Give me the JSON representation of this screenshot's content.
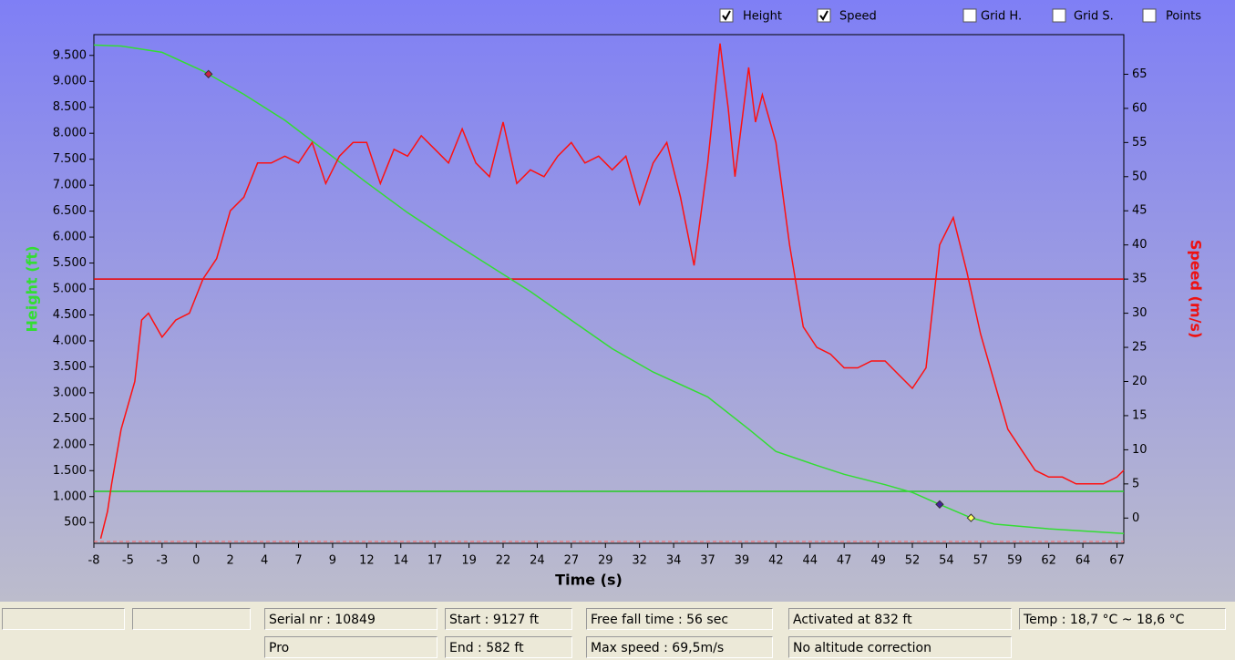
{
  "checkboxes": [
    {
      "label": "Height",
      "checked": true
    },
    {
      "label": "Speed",
      "checked": true
    },
    {
      "label": "Grid H.",
      "checked": false
    },
    {
      "label": "Grid S.",
      "checked": false
    },
    {
      "label": "Points",
      "checked": false
    }
  ],
  "chart_data": {
    "type": "line",
    "xlabel": "Time (s)",
    "ylabel": "Height (ft)",
    "y2label": "Speed (m/s)",
    "xlim": [
      -8,
      67.5
    ],
    "xticks": [
      -8,
      {
        "value": -5.5,
        "label": "-5"
      },
      -3,
      {
        "value": -0.5,
        "label": "0"
      },
      2,
      {
        "value": 4.5,
        "label": "4"
      },
      7,
      {
        "value": 9.5,
        "label": "9"
      },
      12,
      {
        "value": 14.5,
        "label": "14"
      },
      17,
      {
        "value": 19.5,
        "label": "19"
      },
      22,
      {
        "value": 24.5,
        "label": "24"
      },
      27,
      {
        "value": 29.5,
        "label": "29"
      },
      32,
      {
        "value": 34.5,
        "label": "34"
      },
      37,
      {
        "value": 39.5,
        "label": "39"
      },
      42,
      {
        "value": 44.5,
        "label": "44"
      },
      47,
      {
        "value": 49.5,
        "label": "49"
      },
      52,
      {
        "value": 54.5,
        "label": "54"
      },
      57,
      {
        "value": 59.5,
        "label": "59"
      },
      62,
      {
        "value": 64.5,
        "label": "64"
      },
      67
    ],
    "ylim": [
      100,
      9900
    ],
    "yticks": [
      {
        "value": 500,
        "label": "500"
      },
      {
        "value": 1000,
        "label": "1.000"
      },
      {
        "value": 1500,
        "label": "1.500"
      },
      {
        "value": 2000,
        "label": "2.000"
      },
      {
        "value": 2500,
        "label": "2.500"
      },
      {
        "value": 3000,
        "label": "3.000"
      },
      {
        "value": 3500,
        "label": "3.500"
      },
      {
        "value": 4000,
        "label": "4.000"
      },
      {
        "value": 4500,
        "label": "4.500"
      },
      {
        "value": 5000,
        "label": "5.000"
      },
      {
        "value": 5500,
        "label": "5.500"
      },
      {
        "value": 6000,
        "label": "6.000"
      },
      {
        "value": 6500,
        "label": "6.500"
      },
      {
        "value": 7000,
        "label": "7.000"
      },
      {
        "value": 7500,
        "label": "7.500"
      },
      {
        "value": 8000,
        "label": "8.000"
      },
      {
        "value": 8500,
        "label": "8.500"
      },
      {
        "value": 9000,
        "label": "9.000"
      },
      {
        "value": 9500,
        "label": "9.500"
      }
    ],
    "y2lim": [
      -3.7,
      70.8
    ],
    "y2ticks": [
      0,
      5,
      10,
      15,
      20,
      25,
      30,
      35,
      40,
      45,
      50,
      55,
      60,
      65
    ],
    "series": [
      {
        "name": "Height",
        "color": "#33dd33",
        "x": [
          -8,
          -6,
          -3,
          0,
          3,
          6,
          9,
          12,
          15,
          18,
          21,
          24,
          27,
          30,
          33,
          37,
          40,
          42,
          45,
          47,
          50,
          52,
          54,
          56.3,
          58,
          62,
          67.5
        ],
        "values": [
          9700,
          9680,
          9560,
          9200,
          8750,
          8250,
          7650,
          7050,
          6470,
          5950,
          5450,
          4950,
          4400,
          3850,
          3400,
          2920,
          2300,
          1870,
          1600,
          1430,
          1230,
          1080,
          850,
          590,
          470,
          380,
          290
        ]
      },
      {
        "name": "Speed",
        "color": "#ff1010",
        "axis": "y2",
        "x": [
          -7.5,
          -7,
          -6.7,
          -6,
          -5,
          -4.5,
          -4,
          -3,
          -2,
          -1,
          0,
          1,
          2,
          3,
          4,
          5,
          6,
          7,
          8,
          9,
          10,
          11,
          12,
          13,
          14,
          15,
          16,
          17,
          18,
          19,
          20,
          21,
          22,
          23,
          24,
          25,
          26,
          27,
          28,
          29,
          30,
          31,
          32,
          33,
          34,
          35,
          36,
          37,
          37.9,
          38.5,
          39,
          40,
          40.5,
          41,
          42,
          43,
          44,
          45,
          46,
          47,
          48,
          49,
          50,
          51,
          52,
          53,
          54,
          55,
          56,
          57,
          58,
          59,
          60,
          61,
          62,
          63,
          64,
          65,
          66,
          67,
          67.5
        ],
        "values": [
          -3,
          1,
          5,
          13,
          20,
          29,
          30,
          26.5,
          29,
          30,
          35,
          38,
          45,
          47,
          52,
          52,
          53,
          52,
          55,
          49,
          53,
          55,
          55,
          49,
          54,
          53,
          56,
          54,
          52,
          57,
          52,
          50,
          58,
          49,
          51,
          50,
          53,
          55,
          52,
          53,
          51,
          53,
          46,
          52,
          55,
          47,
          37,
          52,
          69.5,
          60,
          50,
          66,
          58,
          62,
          55,
          40,
          28,
          25,
          24,
          22,
          22,
          23,
          23,
          21,
          19,
          22,
          40,
          44,
          36,
          27,
          20,
          13,
          10,
          7,
          6,
          6,
          5,
          5,
          5,
          6,
          7
        ]
      }
    ],
    "reference_lines": [
      {
        "axis": "y2",
        "value": 35,
        "color": "#ee0000"
      },
      {
        "axis": "y",
        "value": 1100,
        "color": "#22cc22"
      }
    ],
    "markers": [
      {
        "x": 0.4,
        "value": 9140,
        "color": "#cc2244"
      },
      {
        "x": 54,
        "value": 850,
        "color": "#442299"
      },
      {
        "x": 56.3,
        "value": 590,
        "color": "#ffff66"
      }
    ]
  },
  "status_bar": {
    "rows": [
      [
        "Serial nr : 10849",
        "Start : 9127 ft",
        "Free fall time : 56 sec",
        "Activated at 832 ft",
        "Temp : 18,7 °C ~ 18,6 °C"
      ],
      [
        "Pro",
        "End : 582 ft",
        "Max speed : 69,5m/s",
        "No altitude correction"
      ]
    ]
  }
}
